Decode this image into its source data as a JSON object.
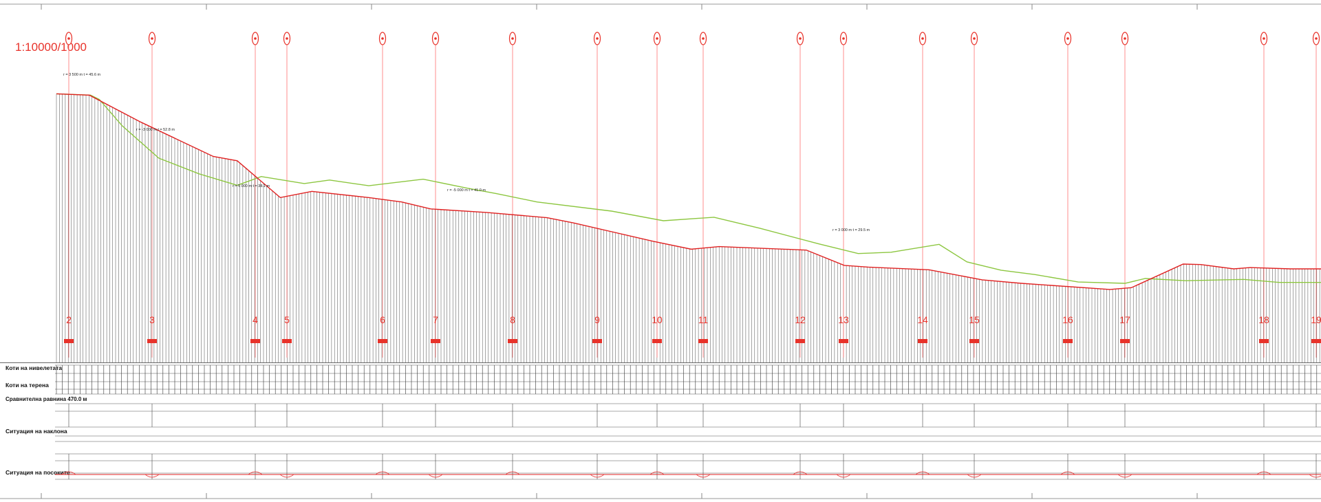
{
  "scale_label": "1:10000/1000",
  "row_labels": {
    "grade_line": "Коти на нивелетата",
    "terrain": "Коти на терена",
    "datum": "Сравнителна равнина 470.0 м",
    "slope": "Ситуация на наклона",
    "plan": "Ситуация на посоките"
  },
  "markers": [
    "2",
    "3",
    "4",
    "5",
    "6",
    "7",
    "8",
    "9",
    "10",
    "11",
    "12",
    "13",
    "14",
    "15",
    "16",
    "17",
    "18",
    "19"
  ],
  "vertical_curves": [
    "r = 3 500 m  t = 45.6 m",
    "r = -3 000 m  t = 52.8 m",
    "r = 5 000 m  t = 38.1 m",
    "r = -5 000 m  t = 41.0 m",
    "r = 3 000 m  t = 29.5 m"
  ],
  "colors": {
    "grade_line": "#e02020",
    "terrain": "#8cc63f",
    "station_line": "#ff7070",
    "marker_text": "#e8322a",
    "table_text": "#111111",
    "ordinates": "#333333"
  },
  "chart_data": {
    "type": "line",
    "title": "",
    "xlabel": "",
    "ylabel": "",
    "series": [
      {
        "x": [
          0,
          2.6,
          6.7,
          12.4,
          14.3,
          17.7,
          20.2,
          24.7,
          27.3,
          29.6,
          34.0,
          38.8,
          40.9,
          47.2,
          50.2,
          52.4,
          59.3,
          62.3,
          64.2,
          69.0,
          73.2,
          76.3,
          83.3,
          85.0,
          89.1,
          90.5,
          93.1,
          94.4,
          97.6,
          100.0
        ],
        "y": [
          955,
          952,
          890,
          812,
          802,
          718,
          732,
          718,
          708,
          692,
          684,
          672,
          660,
          618,
          600,
          606,
          598,
          563,
          559,
          553,
          530,
          522,
          508,
          512,
          566,
          565,
          555,
          558,
          555,
          555
        ]
      },
      {
        "x": [
          0,
          2.7,
          3.4,
          5.2,
          8.1,
          11.3,
          14.3,
          16.2,
          19.6,
          21.6,
          24.7,
          29.0,
          32.4,
          34.8,
          38.0,
          43.9,
          48.0,
          52.0,
          55.6,
          60.3,
          63.4,
          66.0,
          69.8,
          72.0,
          74.7,
          77.4,
          80.8,
          84.5,
          86.1,
          89.3,
          93.9,
          96.7,
          100.0
        ],
        "y": [
          955,
          952,
          942,
          882,
          808,
          772,
          746,
          766,
          750,
          758,
          745,
          760,
          740,
          727,
          708,
          687,
          665,
          673,
          648,
          612,
          590,
          593,
          611,
          571,
          552,
          542,
          525,
          522,
          533,
          528,
          531,
          524,
          524
        ]
      }
    ]
  }
}
